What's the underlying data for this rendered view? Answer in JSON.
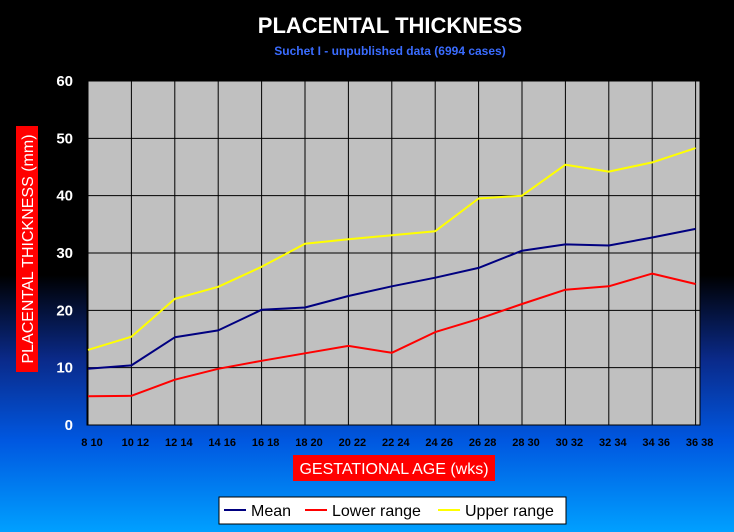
{
  "chart_data": {
    "type": "line",
    "title": "PLACENTAL THICKNESS",
    "subtitle": "Suchet I - unpublished data (6994 cases)",
    "xlabel": "GESTATIONAL AGE (wks)",
    "ylabel": "PLACENTAL THICKNESS (mm)",
    "ylim": [
      0,
      60
    ],
    "yticks": [
      0,
      10,
      20,
      30,
      40,
      50,
      60
    ],
    "grid": true,
    "legend_position": "bottom",
    "categories": [
      "8 10",
      "10 12",
      "12 14",
      "14 16",
      "16 18",
      "18 20",
      "20 22",
      "22 24",
      "24 26",
      "26 28",
      "28 30",
      "30 32",
      "32 34",
      "34 36",
      "36 38"
    ],
    "series": [
      {
        "name": "Mean",
        "color": "#000080",
        "values": [
          9.8,
          10.4,
          15.3,
          16.5,
          20.1,
          20.5,
          22.5,
          24.2,
          25.7,
          27.4,
          30.4,
          31.5,
          31.3,
          32.7,
          34.2
        ]
      },
      {
        "name": "Lower range",
        "color": "#ff0000",
        "values": [
          5.0,
          5.1,
          7.9,
          9.8,
          11.2,
          12.5,
          13.8,
          12.6,
          16.2,
          18.5,
          21.1,
          23.6,
          24.2,
          26.4,
          24.6
        ]
      },
      {
        "name": "Upper range",
        "color": "#ffff00",
        "values": [
          13.1,
          15.4,
          22.0,
          24.1,
          27.6,
          31.6,
          32.4,
          33.1,
          33.8,
          39.5,
          40.0,
          45.4,
          44.2,
          45.8,
          48.3
        ]
      }
    ]
  }
}
